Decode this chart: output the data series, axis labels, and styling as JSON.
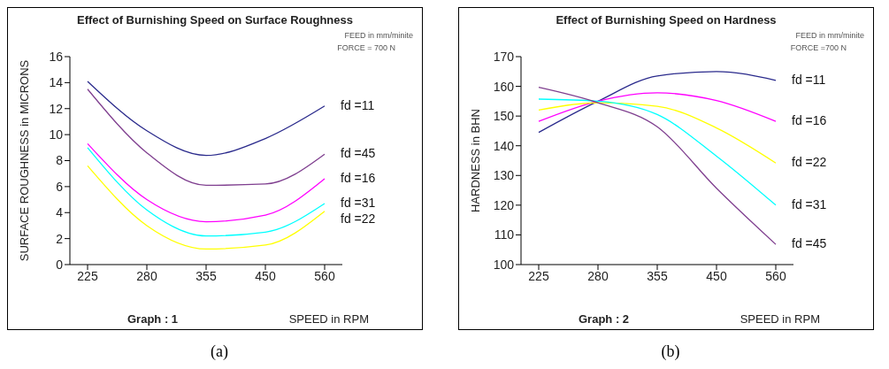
{
  "chart_data": [
    {
      "type": "line",
      "title": "Effect of Burnishing Speed on Surface Roughness",
      "xlabel": "SPEED in RPM",
      "ylabel": "SURFACE ROUGHNESS in MICRONS",
      "categories": [
        "225",
        "280",
        "355",
        "450",
        "560"
      ],
      "series": [
        {
          "name": "fd =11",
          "color": "#2a2a8c",
          "values": [
            14.1,
            10.3,
            8.4,
            9.7,
            12.2
          ]
        },
        {
          "name": "fd =45",
          "color": "#7f3f8f",
          "values": [
            13.5,
            8.6,
            6.1,
            6.2,
            8.5
          ]
        },
        {
          "name": "fd =16",
          "color": "#ff00ff",
          "values": [
            9.3,
            5.0,
            3.3,
            3.8,
            6.6
          ]
        },
        {
          "name": "fd =31",
          "color": "#00ffff",
          "values": [
            9.0,
            4.2,
            2.2,
            2.5,
            4.7
          ]
        },
        {
          "name": "fd =22",
          "color": "#ffff00",
          "values": [
            7.6,
            3.0,
            1.2,
            1.5,
            4.1
          ]
        }
      ],
      "ylim": [
        0,
        16
      ],
      "yticks": [
        0,
        2,
        4,
        6,
        8,
        10,
        12,
        14,
        16
      ],
      "grid": false,
      "legend": false,
      "marker": "none",
      "line_style": "solid",
      "annotations": [
        "FEED in mm/minite",
        "FORCE = 700 N",
        "Graph :  1",
        "(a)"
      ]
    },
    {
      "type": "line",
      "title": "Effect of Burnishing Speed on Hardness",
      "xlabel": "SPEED  in RPM",
      "ylabel": "HARDNESS in BHN",
      "categories": [
        "225",
        "280",
        "355",
        "450",
        "560"
      ],
      "series": [
        {
          "name": "fd =11",
          "color": "#2a2a8c",
          "values": [
            144.5,
            155,
            163.5,
            165,
            162
          ]
        },
        {
          "name": "fd =16",
          "color": "#ff00ff",
          "values": [
            148.2,
            155,
            157.8,
            155.2,
            148.2
          ]
        },
        {
          "name": "fd =22",
          "color": "#ffff00",
          "values": [
            152,
            154.5,
            153.3,
            146,
            134.2
          ]
        },
        {
          "name": "fd =31",
          "color": "#00ffff",
          "values": [
            155.7,
            155,
            150.5,
            136.5,
            120
          ]
        },
        {
          "name": "fd =45",
          "color": "#7f3f8f",
          "values": [
            159.7,
            154.5,
            146.4,
            125.7,
            106.8
          ]
        }
      ],
      "ylim": [
        100,
        170
      ],
      "yticks": [
        100,
        110,
        120,
        130,
        140,
        150,
        160,
        170
      ],
      "grid": false,
      "legend": false,
      "marker": "none",
      "line_style": "solid",
      "annotations": [
        "FEED in mm/minite",
        "FORCE =700 N",
        "Graph : 2",
        "(b)"
      ]
    }
  ]
}
